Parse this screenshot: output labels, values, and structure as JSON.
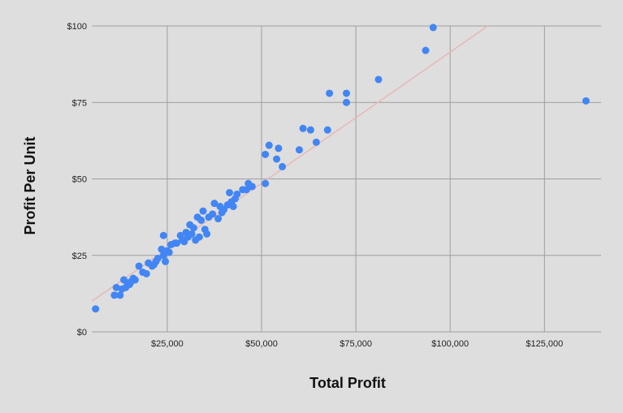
{
  "chart_data": {
    "type": "scatter",
    "title": "",
    "xlabel": "Total Profit",
    "ylabel": "Profit Per Unit",
    "xlim": [
      5000,
      140000
    ],
    "ylim": [
      0,
      100
    ],
    "x_ticks": [
      25000,
      50000,
      75000,
      100000,
      125000
    ],
    "x_tick_labels": [
      "$25,000",
      "$50,000",
      "$75,000",
      "$100,000",
      "$125,000"
    ],
    "y_ticks": [
      0,
      25,
      50,
      75,
      100
    ],
    "y_tick_labels": [
      "$0",
      "$25",
      "$50",
      "$75",
      "$100"
    ],
    "grid": true,
    "legend": "none",
    "colors": {
      "point": "#4285f4",
      "trendline": "#e6b8b8",
      "grid": "#9e9e9e",
      "background": "#dedede"
    },
    "trendline": {
      "type": "linear",
      "x": [
        5000,
        110000
      ],
      "y": [
        10,
        100
      ]
    },
    "points": [
      {
        "x": 6000,
        "y": 7.5
      },
      {
        "x": 11000,
        "y": 12
      },
      {
        "x": 11500,
        "y": 14.5
      },
      {
        "x": 12500,
        "y": 12
      },
      {
        "x": 13000,
        "y": 14
      },
      {
        "x": 13500,
        "y": 17
      },
      {
        "x": 14000,
        "y": 14.5
      },
      {
        "x": 14500,
        "y": 16
      },
      {
        "x": 15000,
        "y": 15.5
      },
      {
        "x": 15500,
        "y": 16.5
      },
      {
        "x": 16000,
        "y": 17.5
      },
      {
        "x": 16500,
        "y": 17
      },
      {
        "x": 17500,
        "y": 21.5
      },
      {
        "x": 18500,
        "y": 19.5
      },
      {
        "x": 19500,
        "y": 19
      },
      {
        "x": 20000,
        "y": 22.5
      },
      {
        "x": 21000,
        "y": 21.5
      },
      {
        "x": 21500,
        "y": 22
      },
      {
        "x": 22000,
        "y": 23
      },
      {
        "x": 22500,
        "y": 24
      },
      {
        "x": 23500,
        "y": 27
      },
      {
        "x": 24000,
        "y": 31.5
      },
      {
        "x": 24000,
        "y": 25
      },
      {
        "x": 24500,
        "y": 23
      },
      {
        "x": 25000,
        "y": 26.5
      },
      {
        "x": 25500,
        "y": 26
      },
      {
        "x": 26000,
        "y": 28.5
      },
      {
        "x": 27000,
        "y": 29
      },
      {
        "x": 27500,
        "y": 29
      },
      {
        "x": 28500,
        "y": 31.5
      },
      {
        "x": 29000,
        "y": 30
      },
      {
        "x": 29500,
        "y": 29.5
      },
      {
        "x": 30000,
        "y": 32.5
      },
      {
        "x": 30500,
        "y": 31
      },
      {
        "x": 31000,
        "y": 35
      },
      {
        "x": 31500,
        "y": 32
      },
      {
        "x": 32000,
        "y": 34
      },
      {
        "x": 32500,
        "y": 30
      },
      {
        "x": 33000,
        "y": 37.5
      },
      {
        "x": 33500,
        "y": 31
      },
      {
        "x": 34000,
        "y": 36.5
      },
      {
        "x": 34500,
        "y": 39.5
      },
      {
        "x": 35000,
        "y": 33.5
      },
      {
        "x": 35500,
        "y": 32
      },
      {
        "x": 36000,
        "y": 37.5
      },
      {
        "x": 37000,
        "y": 38.5
      },
      {
        "x": 37500,
        "y": 42
      },
      {
        "x": 38500,
        "y": 37
      },
      {
        "x": 39000,
        "y": 41
      },
      {
        "x": 39500,
        "y": 39
      },
      {
        "x": 40000,
        "y": 40
      },
      {
        "x": 41000,
        "y": 41.5
      },
      {
        "x": 41500,
        "y": 45.5
      },
      {
        "x": 42000,
        "y": 42.5
      },
      {
        "x": 42500,
        "y": 41
      },
      {
        "x": 43000,
        "y": 43.5
      },
      {
        "x": 43500,
        "y": 45
      },
      {
        "x": 45000,
        "y": 46.5
      },
      {
        "x": 46000,
        "y": 46.5
      },
      {
        "x": 46500,
        "y": 48.5
      },
      {
        "x": 47500,
        "y": 47.5
      },
      {
        "x": 51000,
        "y": 48.5
      },
      {
        "x": 51000,
        "y": 58
      },
      {
        "x": 52000,
        "y": 61
      },
      {
        "x": 54000,
        "y": 56.5
      },
      {
        "x": 54500,
        "y": 60
      },
      {
        "x": 55500,
        "y": 54
      },
      {
        "x": 60000,
        "y": 59.5
      },
      {
        "x": 61000,
        "y": 66.5
      },
      {
        "x": 63000,
        "y": 66
      },
      {
        "x": 64500,
        "y": 62
      },
      {
        "x": 67500,
        "y": 66
      },
      {
        "x": 68000,
        "y": 78
      },
      {
        "x": 72500,
        "y": 78
      },
      {
        "x": 72500,
        "y": 75
      },
      {
        "x": 81000,
        "y": 82.5
      },
      {
        "x": 93500,
        "y": 92
      },
      {
        "x": 95500,
        "y": 99.5
      },
      {
        "x": 136000,
        "y": 75.5
      }
    ]
  }
}
